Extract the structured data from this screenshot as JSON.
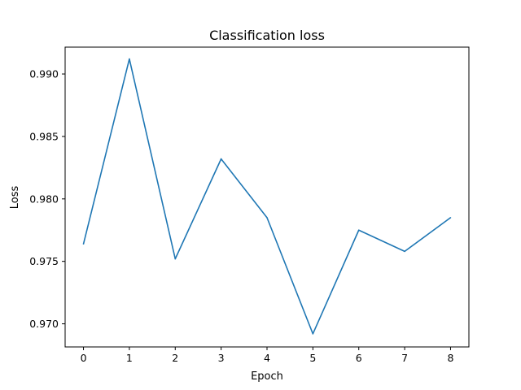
{
  "chart_data": {
    "type": "line",
    "title": "Classification loss",
    "xlabel": "Epoch",
    "ylabel": "Loss",
    "xlim": [
      -0.4,
      8.4
    ],
    "ylim": [
      0.96815,
      0.99215
    ],
    "x_ticks": [
      0,
      1,
      2,
      3,
      4,
      5,
      6,
      7,
      8
    ],
    "y_ticks": [
      0.97,
      0.975,
      0.98,
      0.985,
      0.99
    ],
    "x_tick_labels": [
      "0",
      "1",
      "2",
      "3",
      "4",
      "5",
      "6",
      "7",
      "8"
    ],
    "y_tick_labels": [
      "0.970",
      "0.975",
      "0.980",
      "0.985",
      "0.990"
    ],
    "grid": false,
    "series": [
      {
        "color": "#1f77b4",
        "x": [
          0,
          1,
          2,
          3,
          4,
          5,
          6,
          7,
          8
        ],
        "y": [
          0.9764,
          0.9912,
          0.9752,
          0.9832,
          0.9785,
          0.9692,
          0.9775,
          0.9758,
          0.9785
        ]
      }
    ]
  }
}
